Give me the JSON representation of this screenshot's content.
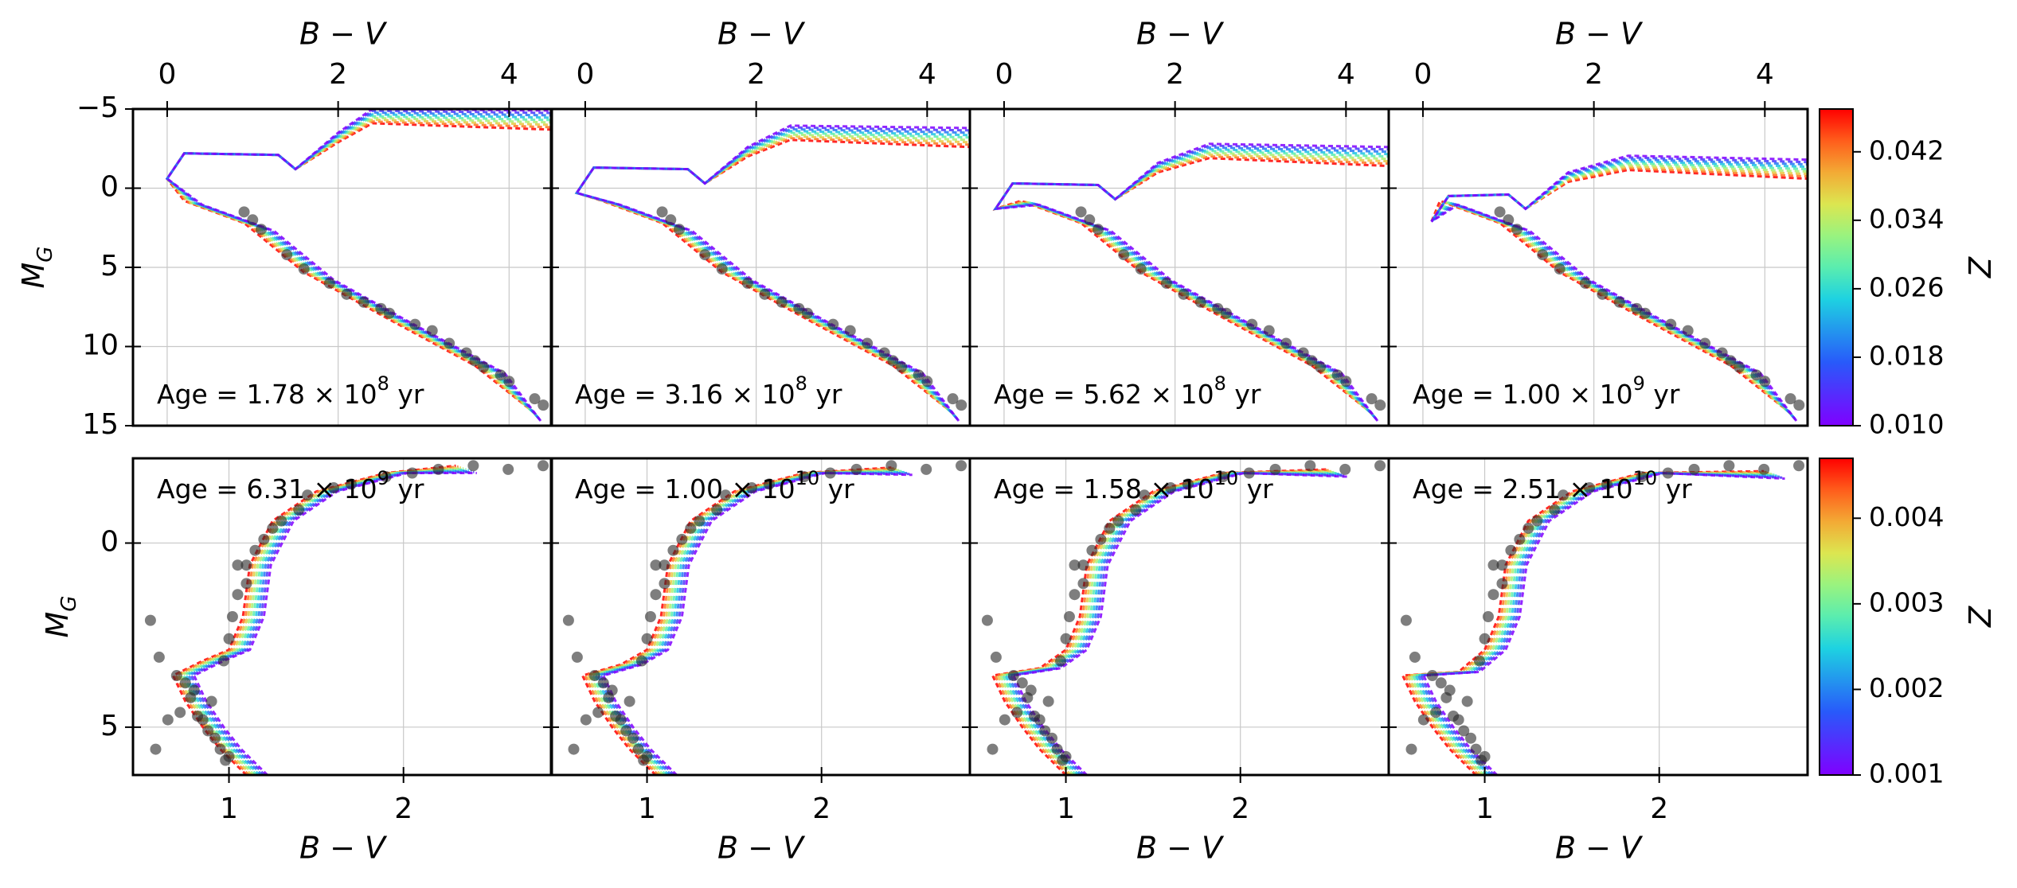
{
  "chart_data": {
    "type": "scatter",
    "description_units": "Color–magnitude diagrams with isochrones; x = B−V color, y = absolute G magnitude (inverted)",
    "top_row": {
      "xlabel": "B − V",
      "ylabel": "M_G",
      "xlim": [
        -0.4,
        4.5
      ],
      "ylim": [
        15,
        -5
      ],
      "xticks": [
        0,
        2,
        4
      ],
      "yticks": [
        -5,
        0,
        5,
        10,
        15
      ],
      "colorbar": {
        "label": "Z",
        "range": [
          0.01,
          0.047
        ],
        "ticks": [
          "0.010",
          "0.018",
          "0.026",
          "0.034",
          "0.042"
        ]
      },
      "panels": [
        {
          "age_label": "Age = 1.78 × 10⁸ yr",
          "age_mantissa": "1.78",
          "age_exp": "8",
          "to_x": 0.1,
          "to_y": -2.2,
          "rgb_x": 1.4,
          "rgb_y": -1.5
        },
        {
          "age_label": "Age = 3.16 × 10⁸ yr",
          "age_mantissa": "3.16",
          "age_exp": "8",
          "to_x": 0.0,
          "to_y": -1.3,
          "rgb_x": 1.3,
          "rgb_y": -0.6
        },
        {
          "age_label": "Age = 5.62 × 10⁸ yr",
          "age_mantissa": "5.62",
          "age_exp": "8",
          "to_x": 0.0,
          "to_y": -0.3,
          "rgb_x": 1.2,
          "rgb_y": 0.4
        },
        {
          "age_label": "Age = 1.00 × 10⁹ yr",
          "age_mantissa": "1.00",
          "age_exp": "9",
          "to_x": 0.2,
          "to_y": 0.5,
          "rgb_x": 1.1,
          "rgb_y": 1.0
        }
      ],
      "cluster_stars": [
        [
          0.9,
          1.5
        ],
        [
          1.0,
          2.0
        ],
        [
          1.1,
          2.6
        ],
        [
          1.4,
          4.2
        ],
        [
          1.6,
          5.1
        ],
        [
          1.9,
          6.0
        ],
        [
          2.1,
          6.7
        ],
        [
          2.3,
          7.2
        ],
        [
          2.5,
          7.6
        ],
        [
          2.6,
          7.9
        ],
        [
          2.9,
          8.6
        ],
        [
          3.1,
          9.0
        ],
        [
          3.3,
          9.8
        ],
        [
          3.5,
          10.4
        ],
        [
          3.6,
          10.9
        ],
        [
          3.7,
          11.3
        ],
        [
          3.9,
          11.8
        ],
        [
          4.0,
          12.2
        ],
        [
          4.3,
          13.3
        ],
        [
          4.4,
          13.7
        ]
      ]
    },
    "bottom_row": {
      "xlabel": "B − V",
      "ylabel": "M_G",
      "xlim": [
        0.45,
        2.85
      ],
      "ylim": [
        6.3,
        -2.3
      ],
      "xticks": [
        1,
        2
      ],
      "yticks": [
        0,
        5
      ],
      "colorbar": {
        "label": "Z",
        "range": [
          0.001,
          0.0047
        ],
        "ticks": [
          "0.001",
          "0.002",
          "0.003",
          "0.004"
        ]
      },
      "panels": [
        {
          "age_label": "Age = 6.31 × 10⁹ yr",
          "age_mantissa": "6.31",
          "age_exp": "9"
        },
        {
          "age_label": "Age = 1.00 × 10¹⁰ yr",
          "age_mantissa": "1.00",
          "age_exp": "10"
        },
        {
          "age_label": "Age = 1.58 × 10¹⁰ yr",
          "age_mantissa": "1.58",
          "age_exp": "10"
        },
        {
          "age_label": "Age = 2.51 × 10¹⁰ yr",
          "age_mantissa": "2.51",
          "age_exp": "10"
        }
      ],
      "cluster_stars": [
        [
          0.55,
          2.1
        ],
        [
          0.6,
          3.1
        ],
        [
          0.7,
          3.6
        ],
        [
          0.72,
          4.6
        ],
        [
          0.75,
          3.8
        ],
        [
          0.78,
          4.2
        ],
        [
          0.8,
          4.0
        ],
        [
          0.82,
          4.7
        ],
        [
          0.85,
          4.8
        ],
        [
          0.88,
          5.1
        ],
        [
          0.9,
          4.3
        ],
        [
          0.92,
          5.3
        ],
        [
          0.95,
          5.6
        ],
        [
          0.97,
          3.2
        ],
        [
          1.0,
          2.6
        ],
        [
          1.02,
          2.0
        ],
        [
          1.05,
          1.4
        ],
        [
          1.05,
          0.6
        ],
        [
          1.1,
          0.6
        ],
        [
          1.1,
          1.1
        ],
        [
          1.15,
          0.2
        ],
        [
          1.2,
          -0.1
        ],
        [
          1.25,
          -0.4
        ],
        [
          1.3,
          -0.6
        ],
        [
          1.4,
          -0.9
        ],
        [
          1.45,
          -1.3
        ],
        [
          1.6,
          -1.5
        ],
        [
          1.7,
          -1.6
        ],
        [
          1.9,
          -1.8
        ],
        [
          2.05,
          -1.9
        ],
        [
          2.2,
          -2.0
        ],
        [
          2.4,
          -2.1
        ],
        [
          2.6,
          -2.0
        ],
        [
          2.8,
          -2.1
        ],
        [
          0.58,
          5.6
        ],
        [
          0.65,
          4.8
        ],
        [
          0.98,
          5.9
        ],
        [
          1.0,
          5.8
        ]
      ]
    }
  }
}
